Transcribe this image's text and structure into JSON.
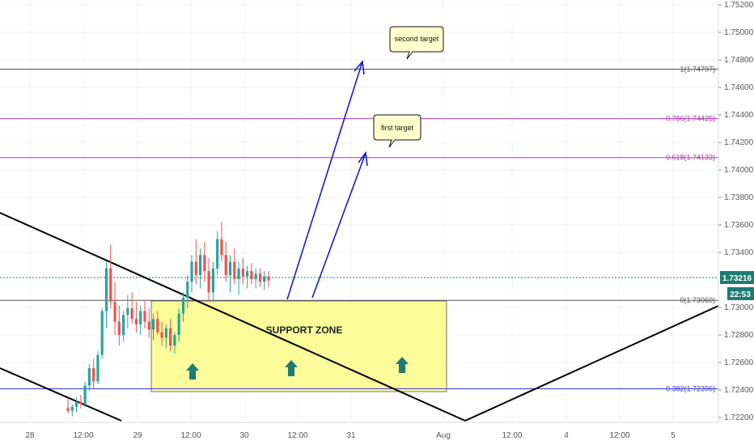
{
  "chart_data": {
    "type": "candlestick",
    "y_ticks": [
      "1.75200",
      "1.75000",
      "1.74800",
      "1.74600",
      "1.74400",
      "1.74200",
      "1.74000",
      "1.73800",
      "1.73600",
      "1.73400",
      "1.73000",
      "1.72800",
      "1.72600",
      "1.72400",
      "1.72200"
    ],
    "ylim": [
      1.7218,
      1.7528
    ],
    "x_ticks": [
      "28",
      "12:00",
      "29",
      "12:00",
      "30",
      "12:00",
      "31",
      "Aug",
      "12:00",
      "4",
      "12:00",
      "5"
    ],
    "fib_levels": [
      {
        "ratio": "1",
        "price": 1.74797,
        "label": "1(1.74797)",
        "color": "#555555"
      },
      {
        "ratio": "0.786",
        "price": 1.74425,
        "label": "0.786(1.74425)",
        "color": "#b03ab0"
      },
      {
        "ratio": "0.618",
        "price": 1.74133,
        "label": "0.618(1.74133)",
        "color": "#b03ab0"
      },
      {
        "ratio": "0",
        "price": 1.7306,
        "label": "0(1.73060)",
        "color": "#555555"
      },
      {
        "ratio": "0.382",
        "price": 1.72396,
        "label": "0.382(1.72396)",
        "color": "#3b3bd6"
      }
    ],
    "current_price": {
      "value": "1.73216",
      "price": 1.73216,
      "color": "#1e7b72"
    },
    "countdown": {
      "value": "22:53",
      "color": "#1e7b72"
    },
    "support_zone": {
      "label": "SUPPORT ZONE",
      "top": 1.7306,
      "bottom": 1.72396,
      "fill": "#fbfb9a"
    },
    "annotations": [
      {
        "text": "second target"
      },
      {
        "text": "first target"
      }
    ],
    "candles": [
      [
        1.7225,
        1.7232,
        1.7221,
        1.7223
      ],
      [
        1.7223,
        1.7228,
        1.7219,
        1.7226
      ],
      [
        1.7226,
        1.7233,
        1.7222,
        1.723
      ],
      [
        1.723,
        1.7235,
        1.7225,
        1.7228
      ],
      [
        1.7228,
        1.7245,
        1.7226,
        1.7242
      ],
      [
        1.7242,
        1.7258,
        1.7238,
        1.7255
      ],
      [
        1.7255,
        1.7262,
        1.724,
        1.7245
      ],
      [
        1.7245,
        1.7268,
        1.7243,
        1.7265
      ],
      [
        1.7265,
        1.73,
        1.7262,
        1.7298
      ],
      [
        1.7298,
        1.7335,
        1.7285,
        1.733
      ],
      [
        1.733,
        1.7348,
        1.73,
        1.7305
      ],
      [
        1.7305,
        1.732,
        1.728,
        1.729
      ],
      [
        1.729,
        1.7302,
        1.7272,
        1.728
      ],
      [
        1.728,
        1.7298,
        1.7275,
        1.7295
      ],
      [
        1.7295,
        1.731,
        1.7285,
        1.73
      ],
      [
        1.73,
        1.7312,
        1.7288,
        1.7292
      ],
      [
        1.7292,
        1.7305,
        1.7282,
        1.7288
      ],
      [
        1.7288,
        1.7302,
        1.728,
        1.7298
      ],
      [
        1.7298,
        1.7306,
        1.7285,
        1.729
      ],
      [
        1.729,
        1.73,
        1.7278,
        1.7284
      ],
      [
        1.7284,
        1.7296,
        1.7276,
        1.7292
      ],
      [
        1.7292,
        1.7298,
        1.728,
        1.7282
      ],
      [
        1.7282,
        1.729,
        1.7272,
        1.7278
      ],
      [
        1.7278,
        1.7288,
        1.727,
        1.7285
      ],
      [
        1.7285,
        1.7292,
        1.7268,
        1.7272
      ],
      [
        1.7272,
        1.7282,
        1.7266,
        1.728
      ],
      [
        1.728,
        1.73,
        1.7275,
        1.7296
      ],
      [
        1.7296,
        1.7312,
        1.729,
        1.7308
      ],
      [
        1.7308,
        1.7325,
        1.73,
        1.732
      ],
      [
        1.732,
        1.734,
        1.7312,
        1.7335
      ],
      [
        1.7335,
        1.7352,
        1.7318,
        1.7325
      ],
      [
        1.7325,
        1.7345,
        1.7315,
        1.734
      ],
      [
        1.734,
        1.735,
        1.732,
        1.7328
      ],
      [
        1.7328,
        1.7338,
        1.7305,
        1.7312
      ],
      [
        1.7312,
        1.7335,
        1.7305,
        1.733
      ],
      [
        1.733,
        1.7358,
        1.7325,
        1.7352
      ],
      [
        1.7352,
        1.7365,
        1.7335,
        1.734
      ],
      [
        1.734,
        1.735,
        1.732,
        1.7325
      ],
      [
        1.7325,
        1.734,
        1.7312,
        1.7335
      ],
      [
        1.7335,
        1.7345,
        1.7318,
        1.7322
      ],
      [
        1.7322,
        1.7335,
        1.731,
        1.733
      ],
      [
        1.733,
        1.7338,
        1.7318,
        1.7324
      ],
      [
        1.7324,
        1.7332,
        1.7315,
        1.7328
      ],
      [
        1.7328,
        1.7334,
        1.7318,
        1.7322
      ],
      [
        1.7322,
        1.733,
        1.7315,
        1.7326
      ],
      [
        1.7326,
        1.733,
        1.7316,
        1.732
      ],
      [
        1.732,
        1.7328,
        1.7314,
        1.7324
      ],
      [
        1.7324,
        1.7328,
        1.7316,
        1.7321
      ]
    ]
  }
}
